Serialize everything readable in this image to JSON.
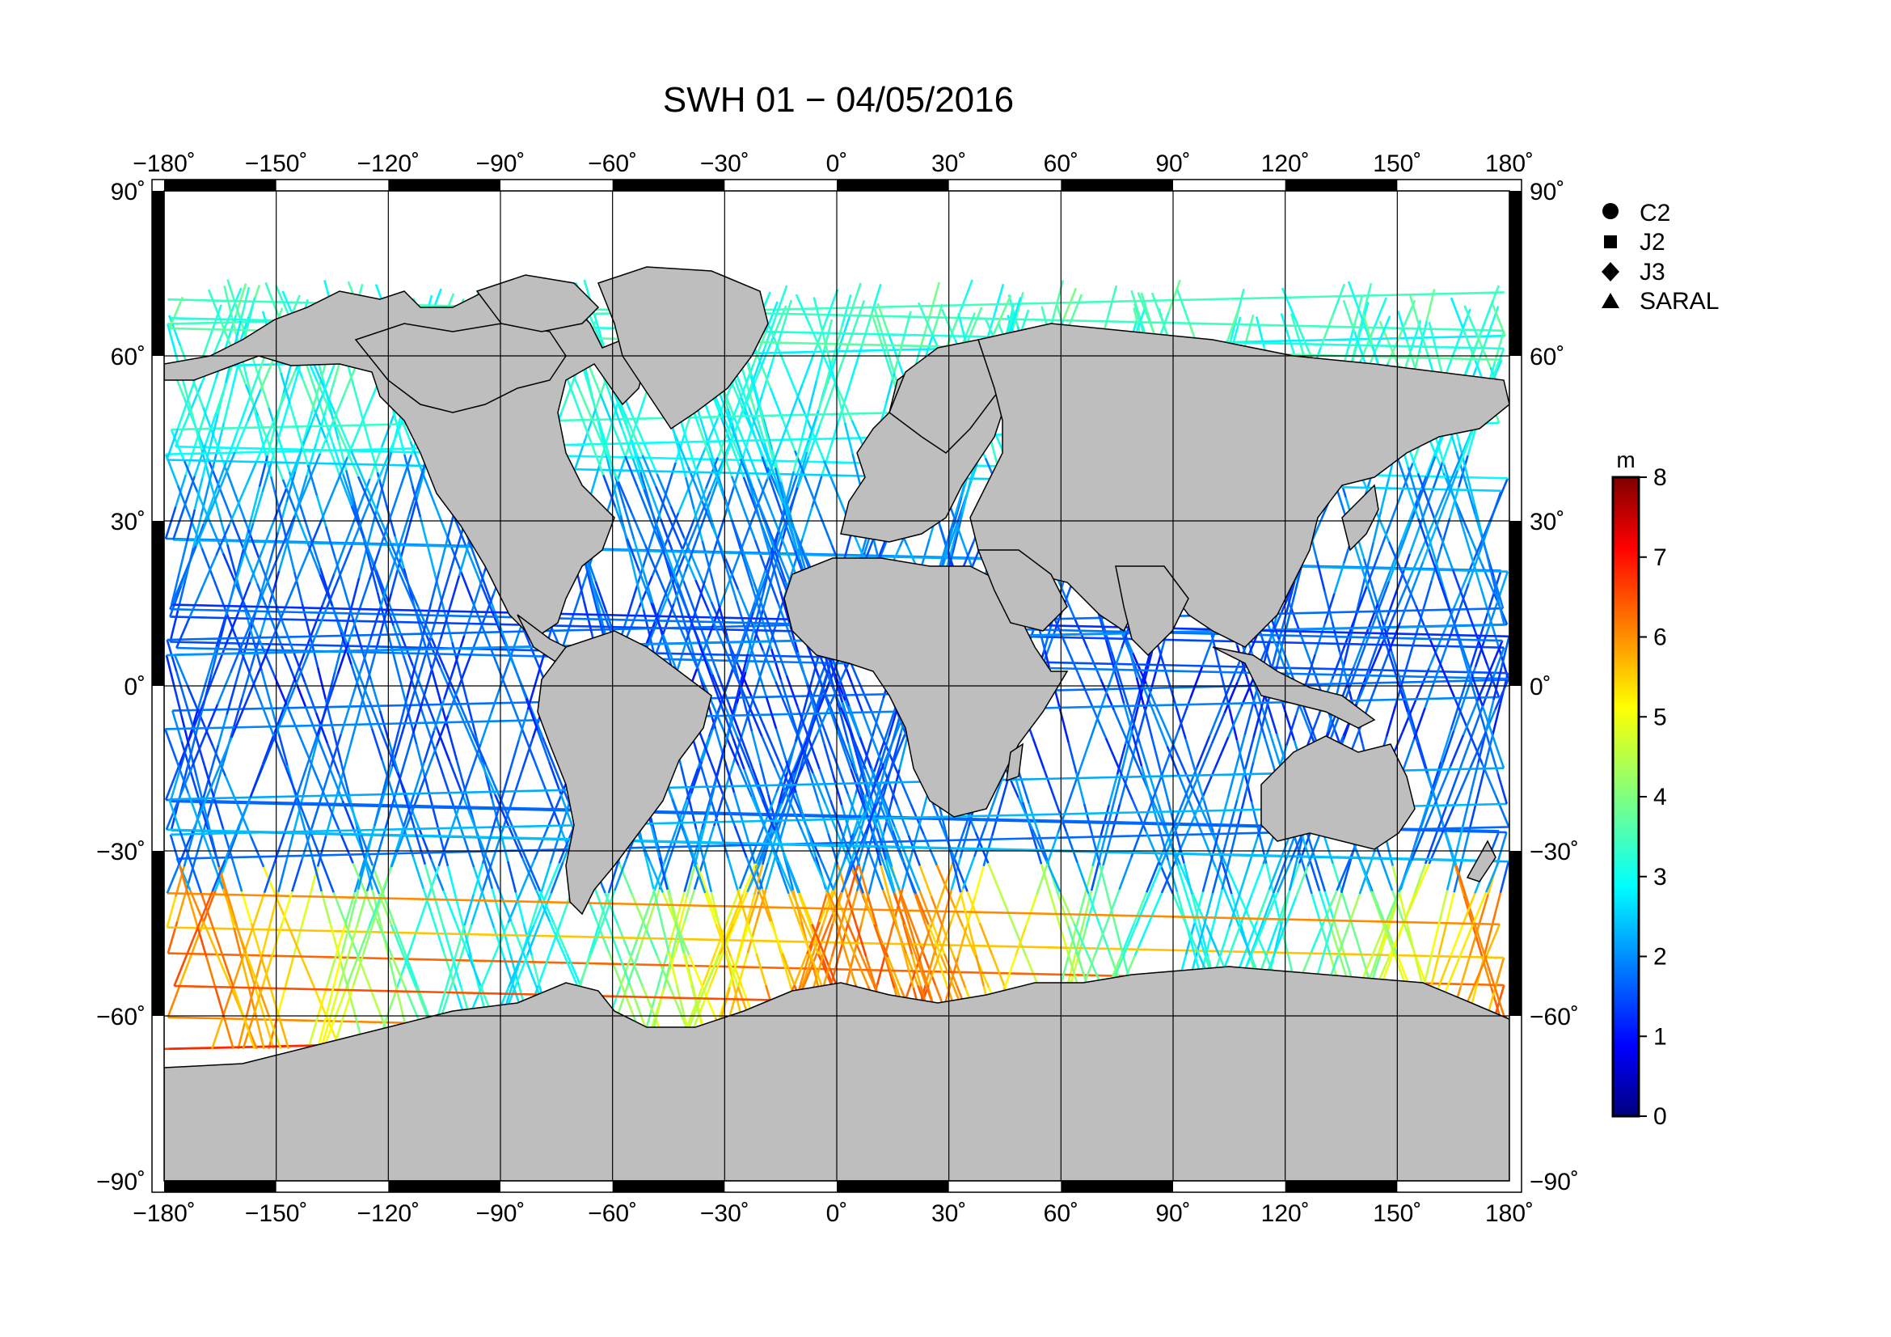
{
  "title": "SWH 01 − 04/05/2016",
  "map": {
    "lon_ticks": [
      "−180˚",
      "−150˚",
      "−120˚",
      "−90˚",
      "−60˚",
      "−30˚",
      "0˚",
      "30˚",
      "60˚",
      "90˚",
      "120˚",
      "150˚",
      "180˚"
    ],
    "lon_values": [
      -180,
      -150,
      -120,
      -90,
      -60,
      -30,
      0,
      30,
      60,
      90,
      120,
      150,
      180
    ],
    "lat_ticks": [
      "90˚",
      "60˚",
      "30˚",
      "0˚",
      "−30˚",
      "−60˚",
      "−90˚"
    ],
    "lat_values": [
      90,
      60,
      30,
      0,
      -30,
      -60,
      -90
    ],
    "projection": "equirectangular",
    "ocean_color": "#ffffff",
    "land_color": "#bebebe",
    "grid": true
  },
  "legend": {
    "items": [
      {
        "label": "C2",
        "marker": "circle"
      },
      {
        "label": "J2",
        "marker": "square"
      },
      {
        "label": "J3",
        "marker": "diamond"
      },
      {
        "label": "SARAL",
        "marker": "triangle"
      }
    ]
  },
  "colorbar": {
    "unit": "m",
    "ticks": [
      "0",
      "1",
      "2",
      "3",
      "4",
      "5",
      "6",
      "7",
      "8"
    ],
    "min": 0,
    "max": 8,
    "colormap": "jet"
  }
}
